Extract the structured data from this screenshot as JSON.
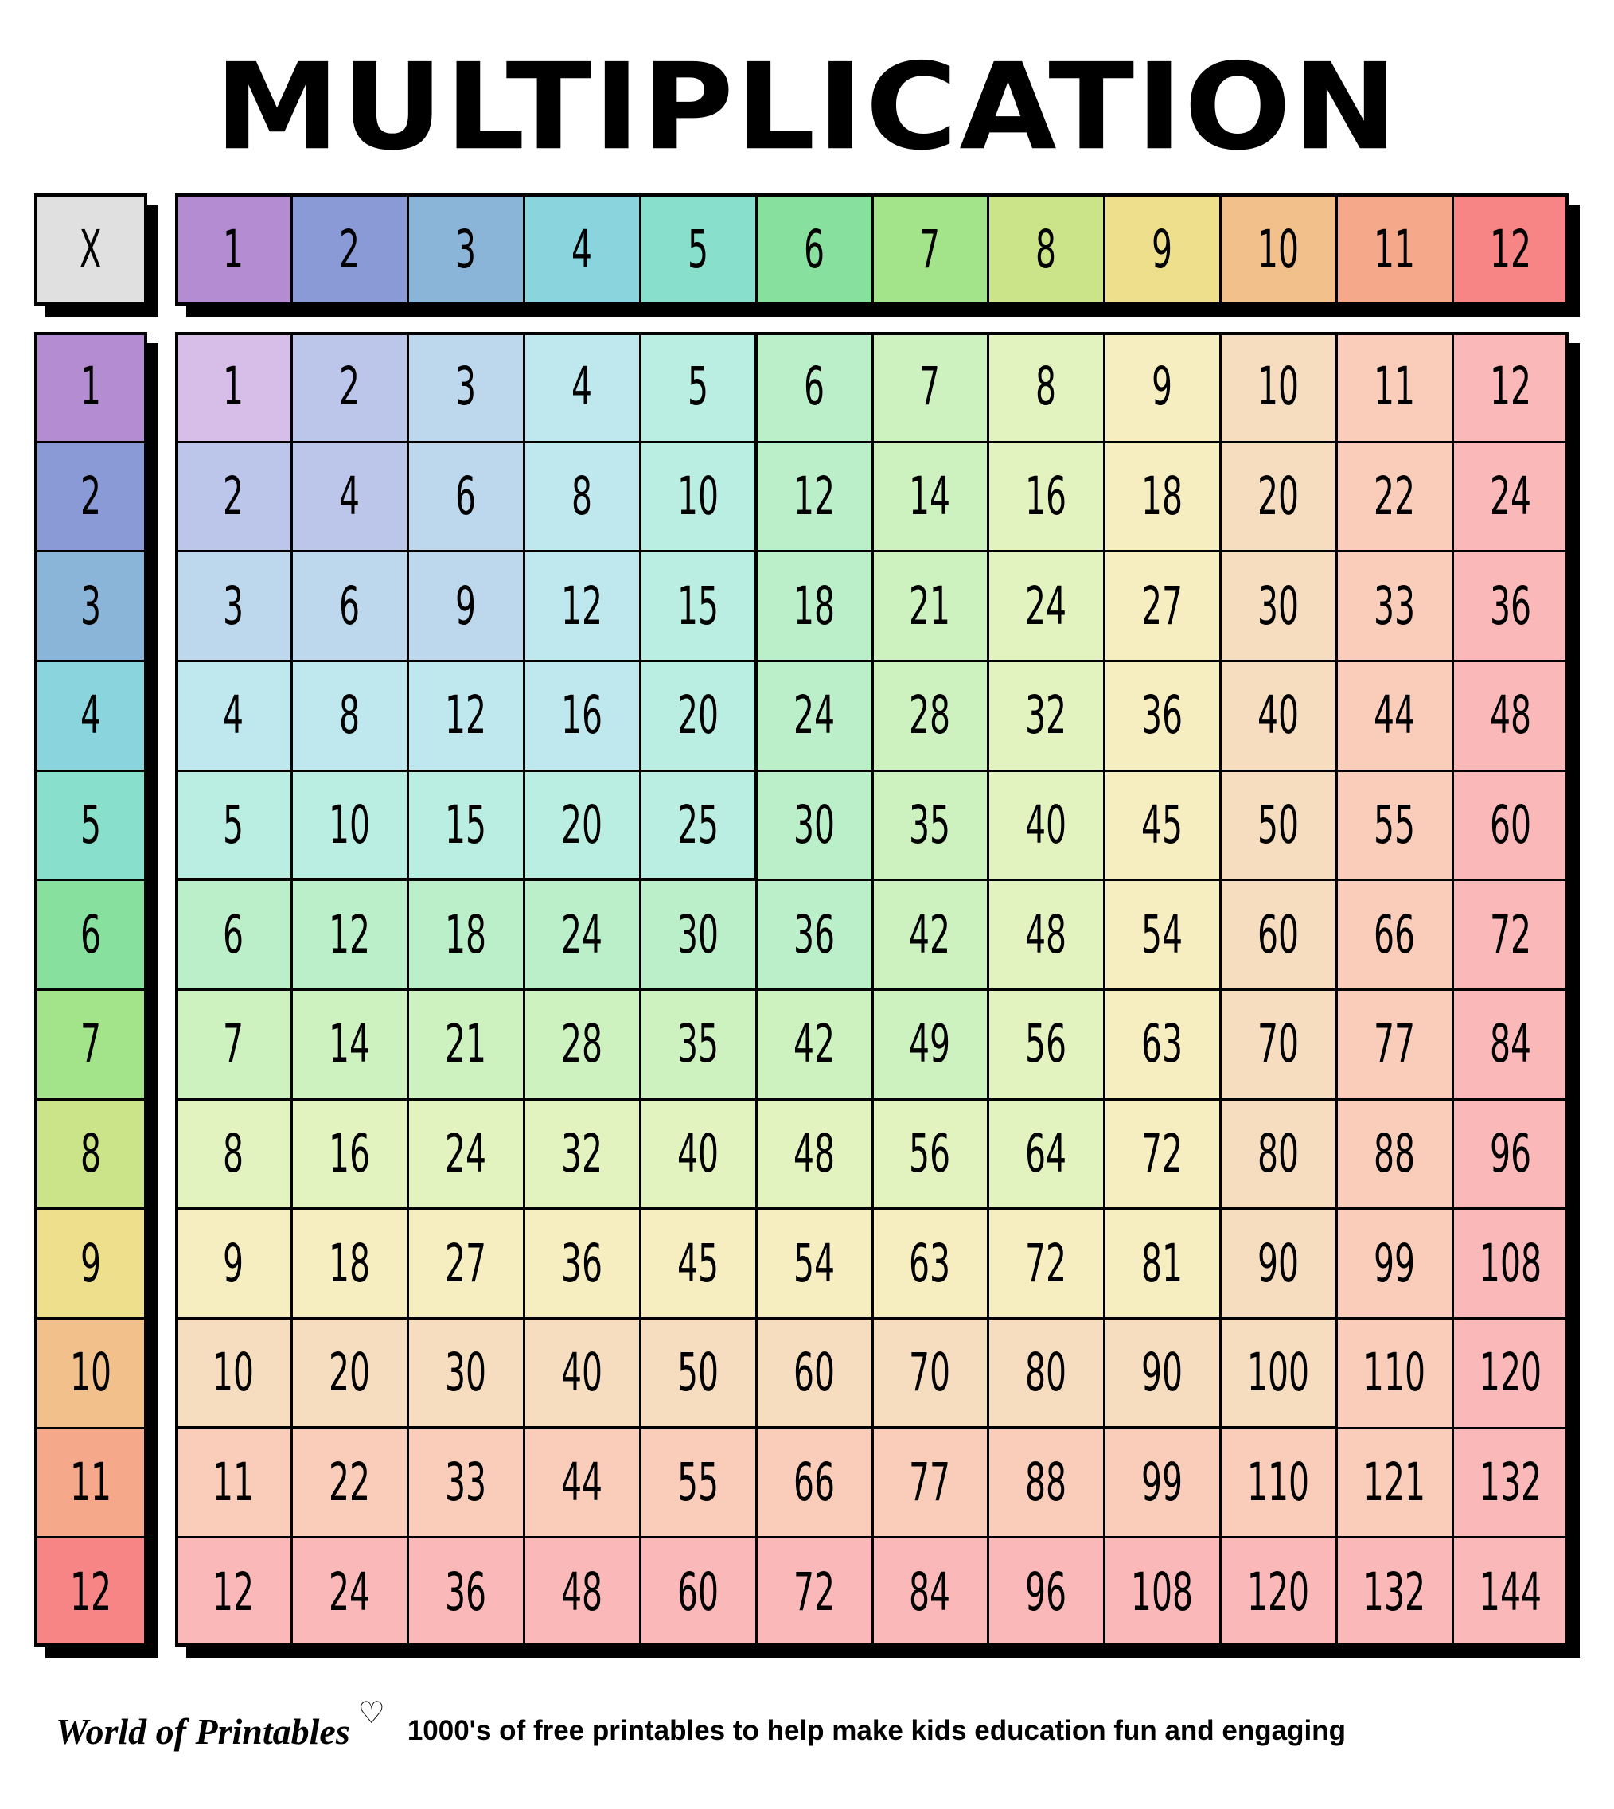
{
  "title": "MULTIPLICATION",
  "corner_label": "X",
  "column_headers": [
    "1",
    "2",
    "3",
    "4",
    "5",
    "6",
    "7",
    "8",
    "9",
    "10",
    "11",
    "12"
  ],
  "row_headers": [
    "1",
    "2",
    "3",
    "4",
    "5",
    "6",
    "7",
    "8",
    "9",
    "10",
    "11",
    "12"
  ],
  "table": [
    [
      "1",
      "2",
      "3",
      "4",
      "5",
      "6",
      "7",
      "8",
      "9",
      "10",
      "11",
      "12"
    ],
    [
      "2",
      "4",
      "6",
      "8",
      "10",
      "12",
      "14",
      "16",
      "18",
      "20",
      "22",
      "24"
    ],
    [
      "3",
      "6",
      "9",
      "12",
      "15",
      "18",
      "21",
      "24",
      "27",
      "30",
      "33",
      "36"
    ],
    [
      "4",
      "8",
      "12",
      "16",
      "20",
      "24",
      "28",
      "32",
      "36",
      "40",
      "44",
      "48"
    ],
    [
      "5",
      "10",
      "15",
      "20",
      "25",
      "30",
      "35",
      "40",
      "45",
      "50",
      "55",
      "60"
    ],
    [
      "6",
      "12",
      "18",
      "24",
      "30",
      "36",
      "42",
      "48",
      "54",
      "60",
      "66",
      "72"
    ],
    [
      "7",
      "14",
      "21",
      "28",
      "35",
      "42",
      "49",
      "56",
      "63",
      "70",
      "77",
      "84"
    ],
    [
      "8",
      "16",
      "24",
      "32",
      "40",
      "48",
      "56",
      "64",
      "72",
      "80",
      "88",
      "96"
    ],
    [
      "9",
      "18",
      "27",
      "36",
      "45",
      "54",
      "63",
      "72",
      "81",
      "90",
      "99",
      "108"
    ],
    [
      "10",
      "20",
      "30",
      "40",
      "50",
      "60",
      "70",
      "80",
      "90",
      "100",
      "110",
      "120"
    ],
    [
      "11",
      "22",
      "33",
      "44",
      "55",
      "66",
      "77",
      "88",
      "99",
      "110",
      "121",
      "132"
    ],
    [
      "12",
      "24",
      "36",
      "48",
      "60",
      "72",
      "84",
      "96",
      "108",
      "120",
      "132",
      "144"
    ]
  ],
  "colors": {
    "corner": "#E0E0E0",
    "header": [
      "#B48CD2",
      "#8A9AD6",
      "#8AB5D8",
      "#8AD4DD",
      "#88DFCB",
      "#88E09E",
      "#A3E38A",
      "#CBE48A",
      "#EDDF8C",
      "#F2C08A",
      "#F6A88A",
      "#F88585"
    ],
    "cell": [
      "#D7BEE8",
      "#BCC6EA",
      "#BDD7EC",
      "#BEE8EE",
      "#BAEEE2",
      "#BBEFC9",
      "#CDF2C0",
      "#E3F3C0",
      "#F6EEC0",
      "#F6DDBF",
      "#F9CDBA",
      "#FAB8B8"
    ]
  },
  "footer": {
    "logo": "World of Printables",
    "heart_icon": "♡",
    "tagline": "1000's of free printables to help make kids education fun and engaging"
  }
}
